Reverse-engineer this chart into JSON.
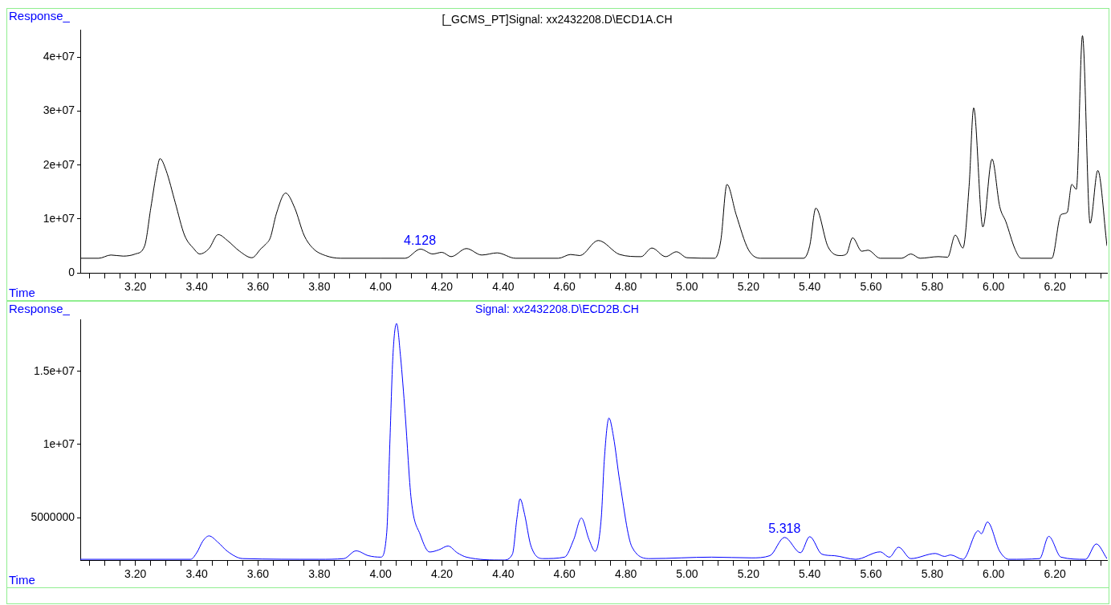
{
  "chart_data": [
    {
      "type": "line",
      "title": "[_GCMS_PT]Signal: xx2432208.D\\ECD1A.CH",
      "xlabel": "Time",
      "ylabel": "Response_",
      "color": "#000000",
      "x": [
        3.02,
        3.08,
        3.12,
        3.16,
        3.2,
        3.23,
        3.25,
        3.27,
        3.28,
        3.3,
        3.33,
        3.36,
        3.39,
        3.41,
        3.44,
        3.47,
        3.5,
        3.54,
        3.58,
        3.61,
        3.625,
        3.64,
        3.66,
        3.69,
        3.72,
        3.75,
        3.78,
        3.82,
        3.87,
        4.0,
        4.08,
        4.13,
        4.17,
        4.2,
        4.23,
        4.28,
        4.33,
        4.38,
        4.44,
        4.58,
        4.62,
        4.65,
        4.71,
        4.78,
        4.85,
        4.885,
        4.93,
        4.965,
        5.0,
        5.09,
        5.11,
        5.13,
        5.16,
        5.2,
        5.24,
        5.38,
        5.4,
        5.42,
        5.46,
        5.5,
        5.52,
        5.54,
        5.57,
        5.59,
        5.63,
        5.7,
        5.73,
        5.76,
        5.82,
        5.85,
        5.875,
        5.9,
        5.92,
        5.935,
        5.965,
        5.995,
        6.02,
        6.04,
        6.07,
        6.09,
        6.19,
        6.22,
        6.24,
        6.255,
        6.27,
        6.29,
        6.315,
        6.34,
        6.37
      ],
      "values": [
        2700000.0,
        2700000.0,
        3300000.0,
        3100000.0,
        3500000.0,
        5000000.0,
        12000000.0,
        19000000.0,
        21200000.0,
        19000000.0,
        13000000.0,
        7000000.0,
        4500000.0,
        3500000.0,
        4500000.0,
        7100000.0,
        6000000.0,
        4000000.0,
        2800000.0,
        4500000.0,
        5300000.0,
        6500000.0,
        11000000.0,
        14800000.0,
        12000000.0,
        7000000.0,
        4500000.0,
        3200000.0,
        2700000.0,
        2700000.0,
        2700000.0,
        4400000.0,
        3500000.0,
        3800000.0,
        3000000.0,
        4500000.0,
        3300000.0,
        3700000.0,
        2700000.0,
        2700000.0,
        3400000.0,
        3200000.0,
        6000000.0,
        3400000.0,
        3000000.0,
        4600000.0,
        3000000.0,
        3900000.0,
        2800000.0,
        2700000.0,
        6000000.0,
        16400000.0,
        10800000.0,
        4300000.0,
        2700000.0,
        2700000.0,
        5000000.0,
        12000000.0,
        4800000.0,
        3200000.0,
        3500000.0,
        6500000.0,
        4000000.0,
        4200000.0,
        2700000.0,
        2700000.0,
        3500000.0,
        2700000.0,
        3000000.0,
        2900000.0,
        7000000.0,
        4600000.0,
        16000000.0,
        30600000.0,
        8500000.0,
        21100000.0,
        12300000.0,
        9500000.0,
        4400000.0,
        2700000.0,
        2700000.0,
        10800000.0,
        11200000.0,
        16400000.0,
        15500000.0,
        44000000.0,
        9200000.0,
        19000000.0,
        5000000.0
      ],
      "xlim": [
        3.02,
        6.37
      ],
      "xticks": [
        {
          "value": 3.05,
          "label": null
        },
        {
          "value": 3.1,
          "label": null
        },
        {
          "value": 3.15,
          "label": null
        },
        {
          "value": 3.2,
          "label": "3.20"
        },
        {
          "value": 3.25,
          "label": null
        },
        {
          "value": 3.3,
          "label": null
        },
        {
          "value": 3.35,
          "label": null
        },
        {
          "value": 3.4,
          "label": "3.40"
        },
        {
          "value": 3.45,
          "label": null
        },
        {
          "value": 3.5,
          "label": null
        },
        {
          "value": 3.55,
          "label": null
        },
        {
          "value": 3.6,
          "label": "3.60"
        },
        {
          "value": 3.65,
          "label": null
        },
        {
          "value": 3.7,
          "label": null
        },
        {
          "value": 3.75,
          "label": null
        },
        {
          "value": 3.8,
          "label": "3.80"
        },
        {
          "value": 3.85,
          "label": null
        },
        {
          "value": 3.9,
          "label": null
        },
        {
          "value": 3.95,
          "label": null
        },
        {
          "value": 4.0,
          "label": "4.00"
        },
        {
          "value": 4.05,
          "label": null
        },
        {
          "value": 4.1,
          "label": null
        },
        {
          "value": 4.15,
          "label": null
        },
        {
          "value": 4.2,
          "label": "4.20"
        },
        {
          "value": 4.25,
          "label": null
        },
        {
          "value": 4.3,
          "label": null
        },
        {
          "value": 4.35,
          "label": null
        },
        {
          "value": 4.4,
          "label": "4.40"
        },
        {
          "value": 4.45,
          "label": null
        },
        {
          "value": 4.5,
          "label": null
        },
        {
          "value": 4.55,
          "label": null
        },
        {
          "value": 4.6,
          "label": "4.60"
        },
        {
          "value": 4.65,
          "label": null
        },
        {
          "value": 4.7,
          "label": null
        },
        {
          "value": 4.75,
          "label": null
        },
        {
          "value": 4.8,
          "label": "4.80"
        },
        {
          "value": 4.85,
          "label": null
        },
        {
          "value": 4.9,
          "label": null
        },
        {
          "value": 4.95,
          "label": null
        },
        {
          "value": 5.0,
          "label": "5.00"
        },
        {
          "value": 5.05,
          "label": null
        },
        {
          "value": 5.1,
          "label": null
        },
        {
          "value": 5.15,
          "label": null
        },
        {
          "value": 5.2,
          "label": "5.20"
        },
        {
          "value": 5.25,
          "label": null
        },
        {
          "value": 5.3,
          "label": null
        },
        {
          "value": 5.35,
          "label": null
        },
        {
          "value": 5.4,
          "label": "5.40"
        },
        {
          "value": 5.45,
          "label": null
        },
        {
          "value": 5.5,
          "label": null
        },
        {
          "value": 5.55,
          "label": null
        },
        {
          "value": 5.6,
          "label": "5.60"
        },
        {
          "value": 5.65,
          "label": null
        },
        {
          "value": 5.7,
          "label": null
        },
        {
          "value": 5.75,
          "label": null
        },
        {
          "value": 5.8,
          "label": "5.80"
        },
        {
          "value": 5.85,
          "label": null
        },
        {
          "value": 5.9,
          "label": null
        },
        {
          "value": 5.95,
          "label": null
        },
        {
          "value": 6.0,
          "label": "6.00"
        },
        {
          "value": 6.05,
          "label": null
        },
        {
          "value": 6.1,
          "label": null
        },
        {
          "value": 6.15,
          "label": null
        },
        {
          "value": 6.2,
          "label": "6.20"
        },
        {
          "value": 6.25,
          "label": null
        },
        {
          "value": 6.3,
          "label": null
        },
        {
          "value": 6.35,
          "label": null
        }
      ],
      "ylim": [
        0,
        45000000.0
      ],
      "yticks": [
        0,
        {
          "value": 10000000.0,
          "label": "1e+07"
        },
        {
          "value": 20000000.0,
          "label": "2e+07"
        },
        {
          "value": 30000000.0,
          "label": "3e+07"
        },
        {
          "value": 40000000.0,
          "label": "4e+07"
        }
      ],
      "annotations": [
        {
          "text": "4.128",
          "x": 4.128,
          "y": 4400000.0
        }
      ]
    },
    {
      "type": "line",
      "title": "Signal: xx2432208.D\\ECD2B.CH",
      "xlabel": "Time",
      "ylabel": "Response_",
      "color": "#0000ff",
      "x": [
        3.02,
        3.38,
        3.4,
        3.42,
        3.44,
        3.47,
        3.5,
        3.55,
        3.8,
        3.88,
        3.92,
        3.96,
        4.0,
        4.02,
        4.03,
        4.04,
        4.052,
        4.065,
        4.08,
        4.1,
        4.13,
        4.16,
        4.19,
        4.22,
        4.25,
        4.28,
        4.4,
        4.43,
        4.445,
        4.455,
        4.47,
        4.49,
        4.53,
        4.6,
        4.63,
        4.655,
        4.68,
        4.7,
        4.72,
        4.73,
        4.745,
        4.76,
        4.78,
        4.82,
        4.88,
        5.08,
        5.21,
        5.27,
        5.318,
        5.37,
        5.4,
        5.44,
        5.48,
        5.55,
        5.63,
        5.66,
        5.69,
        5.73,
        5.81,
        5.84,
        5.86,
        5.9,
        5.95,
        5.96,
        5.98,
        6.02,
        6.05,
        6.15,
        6.18,
        6.22,
        6.3,
        6.335,
        6.37
      ],
      "values": [
        2150000.0,
        2150000.0,
        2600000.0,
        3400000.0,
        3750000.0,
        3300000.0,
        2700000.0,
        2200000.0,
        2150000.0,
        2200000.0,
        2730000.0,
        2400000.0,
        2300000.0,
        4000000.0,
        10000000.0,
        16000000.0,
        18260000.0,
        16000000.0,
        12100000.0,
        6200000.0,
        3800000.0,
        2650000.0,
        2800000.0,
        3060000.0,
        2600000.0,
        2300000.0,
        2100000.0,
        2500000.0,
        5000000.0,
        6280000.0,
        5200000.0,
        3100000.0,
        2200000.0,
        2300000.0,
        3500000.0,
        4970000.0,
        3500000.0,
        2700000.0,
        5000000.0,
        9000000.0,
        11800000.0,
        10500000.0,
        7500000.0,
        3000000.0,
        2200000.0,
        2300000.0,
        2250000.0,
        2400000.0,
        3650000.0,
        2600000.0,
        3700000.0,
        2500000.0,
        2400000.0,
        2150000.0,
        2660000.0,
        2300000.0,
        2980000.0,
        2200000.0,
        2550000.0,
        2350000.0,
        2450000.0,
        2150000.0,
        4100000.0,
        3900000.0,
        4700000.0,
        2700000.0,
        2150000.0,
        2200000.0,
        3720000.0,
        2300000.0,
        2150000.0,
        3200000.0,
        2200000.0
      ],
      "xlim": [
        3.02,
        6.37
      ],
      "xticks": [
        {
          "value": 3.05,
          "label": null
        },
        {
          "value": 3.1,
          "label": null
        },
        {
          "value": 3.15,
          "label": null
        },
        {
          "value": 3.2,
          "label": "3.20"
        },
        {
          "value": 3.25,
          "label": null
        },
        {
          "value": 3.3,
          "label": null
        },
        {
          "value": 3.35,
          "label": null
        },
        {
          "value": 3.4,
          "label": "3.40"
        },
        {
          "value": 3.45,
          "label": null
        },
        {
          "value": 3.5,
          "label": null
        },
        {
          "value": 3.55,
          "label": null
        },
        {
          "value": 3.6,
          "label": "3.60"
        },
        {
          "value": 3.65,
          "label": null
        },
        {
          "value": 3.7,
          "label": null
        },
        {
          "value": 3.75,
          "label": null
        },
        {
          "value": 3.8,
          "label": "3.80"
        },
        {
          "value": 3.85,
          "label": null
        },
        {
          "value": 3.9,
          "label": null
        },
        {
          "value": 3.95,
          "label": null
        },
        {
          "value": 4.0,
          "label": "4.00"
        },
        {
          "value": 4.05,
          "label": null
        },
        {
          "value": 4.1,
          "label": null
        },
        {
          "value": 4.15,
          "label": null
        },
        {
          "value": 4.2,
          "label": "4.20"
        },
        {
          "value": 4.25,
          "label": null
        },
        {
          "value": 4.3,
          "label": null
        },
        {
          "value": 4.35,
          "label": null
        },
        {
          "value": 4.4,
          "label": "4.40"
        },
        {
          "value": 4.45,
          "label": null
        },
        {
          "value": 4.5,
          "label": null
        },
        {
          "value": 4.55,
          "label": null
        },
        {
          "value": 4.6,
          "label": "4.60"
        },
        {
          "value": 4.65,
          "label": null
        },
        {
          "value": 4.7,
          "label": null
        },
        {
          "value": 4.75,
          "label": null
        },
        {
          "value": 4.8,
          "label": "4.80"
        },
        {
          "value": 4.85,
          "label": null
        },
        {
          "value": 4.9,
          "label": null
        },
        {
          "value": 4.95,
          "label": null
        },
        {
          "value": 5.0,
          "label": "5.00"
        },
        {
          "value": 5.05,
          "label": null
        },
        {
          "value": 5.1,
          "label": null
        },
        {
          "value": 5.15,
          "label": null
        },
        {
          "value": 5.2,
          "label": "5.20"
        },
        {
          "value": 5.25,
          "label": null
        },
        {
          "value": 5.3,
          "label": null
        },
        {
          "value": 5.35,
          "label": null
        },
        {
          "value": 5.4,
          "label": "5.40"
        },
        {
          "value": 5.45,
          "label": null
        },
        {
          "value": 5.5,
          "label": null
        },
        {
          "value": 5.55,
          "label": null
        },
        {
          "value": 5.6,
          "label": "5.60"
        },
        {
          "value": 5.65,
          "label": null
        },
        {
          "value": 5.7,
          "label": null
        },
        {
          "value": 5.75,
          "label": null
        },
        {
          "value": 5.8,
          "label": "5.80"
        },
        {
          "value": 5.85,
          "label": null
        },
        {
          "value": 5.9,
          "label": null
        },
        {
          "value": 5.95,
          "label": null
        },
        {
          "value": 6.0,
          "label": "6.00"
        },
        {
          "value": 6.05,
          "label": null
        },
        {
          "value": 6.1,
          "label": null
        },
        {
          "value": 6.15,
          "label": null
        },
        {
          "value": 6.2,
          "label": "6.20"
        },
        {
          "value": 6.25,
          "label": null
        },
        {
          "value": 6.3,
          "label": null
        },
        {
          "value": 6.35,
          "label": null
        }
      ],
      "ylim": [
        2100000.0,
        18500000.0
      ],
      "yticks": [
        5000000,
        {
          "value": 10000000.0,
          "label": "1e+07"
        },
        {
          "value": 15000000.0,
          "label": "1.5e+07"
        }
      ],
      "annotations": [
        {
          "text": "5.318",
          "x": 5.318,
          "y": 3650000.0
        }
      ]
    }
  ]
}
